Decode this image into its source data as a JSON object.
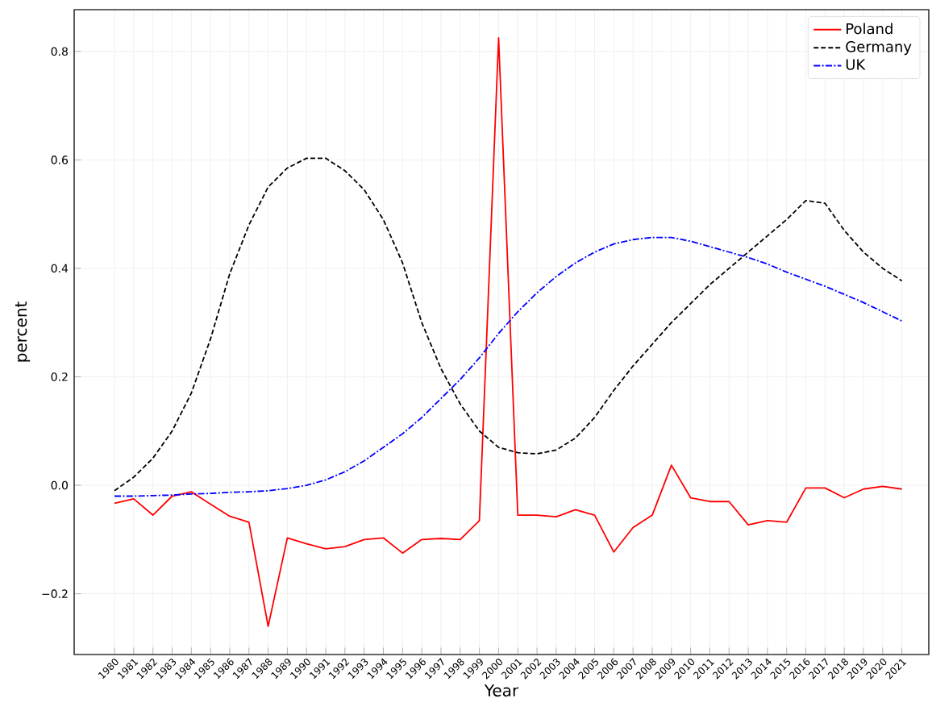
{
  "chart_data": {
    "type": "line",
    "xlabel": "Year",
    "ylabel": "percent",
    "x": [
      1980,
      1981,
      1982,
      1983,
      1984,
      1985,
      1986,
      1987,
      1988,
      1989,
      1990,
      1991,
      1992,
      1993,
      1994,
      1995,
      1996,
      1997,
      1998,
      1999,
      2000,
      2001,
      2002,
      2003,
      2004,
      2005,
      2006,
      2007,
      2008,
      2009,
      2010,
      2011,
      2012,
      2013,
      2014,
      2015,
      2016,
      2017,
      2018,
      2019,
      2020,
      2021
    ],
    "series": [
      {
        "name": "Poland",
        "color": "#ff0000",
        "line_style": "solid",
        "values": [
          -0.033,
          -0.025,
          -0.055,
          -0.02,
          -0.012,
          -0.035,
          -0.057,
          -0.068,
          -0.26,
          -0.097,
          -0.108,
          -0.117,
          -0.113,
          -0.1,
          -0.097,
          -0.125,
          -0.1,
          -0.098,
          -0.1,
          -0.065,
          0.825,
          -0.055,
          -0.055,
          -0.058,
          -0.045,
          -0.055,
          -0.123,
          -0.078,
          -0.055,
          0.037,
          -0.023,
          -0.03,
          -0.03,
          -0.073,
          -0.065,
          -0.068,
          -0.005,
          -0.005,
          -0.023,
          -0.007,
          -0.002,
          -0.007
        ]
      },
      {
        "name": "Germany",
        "color": "#000000",
        "line_style": "dashed",
        "values": [
          -0.01,
          0.015,
          0.05,
          0.1,
          0.17,
          0.27,
          0.39,
          0.48,
          0.55,
          0.585,
          0.603,
          0.603,
          0.58,
          0.545,
          0.49,
          0.41,
          0.3,
          0.215,
          0.15,
          0.1,
          0.07,
          0.06,
          0.058,
          0.065,
          0.087,
          0.125,
          0.175,
          0.22,
          0.26,
          0.3,
          0.335,
          0.37,
          0.4,
          0.43,
          0.46,
          0.49,
          0.525,
          0.52,
          0.47,
          0.43,
          0.4,
          0.377
        ]
      },
      {
        "name": "UK",
        "color": "#0000ff",
        "line_style": "dashdot",
        "values": [
          -0.02,
          -0.02,
          -0.019,
          -0.018,
          -0.016,
          -0.015,
          -0.013,
          -0.012,
          -0.01,
          -0.006,
          0,
          0.01,
          0.025,
          0.045,
          0.07,
          0.095,
          0.125,
          0.16,
          0.195,
          0.235,
          0.28,
          0.32,
          0.355,
          0.385,
          0.41,
          0.43,
          0.445,
          0.453,
          0.457,
          0.457,
          0.45,
          0.44,
          0.43,
          0.42,
          0.408,
          0.393,
          0.38,
          0.367,
          0.352,
          0.337,
          0.32,
          0.303
        ]
      }
    ],
    "xlim": [
      1977.9,
      2022.4
    ],
    "ylim": [
      -0.312,
      0.877
    ],
    "xticks": [
      1980,
      1981,
      1982,
      1983,
      1984,
      1985,
      1986,
      1987,
      1988,
      1989,
      1990,
      1991,
      1992,
      1993,
      1994,
      1995,
      1996,
      1997,
      1998,
      1999,
      2000,
      2001,
      2002,
      2003,
      2004,
      2005,
      2006,
      2007,
      2008,
      2009,
      2010,
      2011,
      2012,
      2013,
      2014,
      2015,
      2016,
      2017,
      2018,
      2019,
      2020,
      2021
    ],
    "yticks": [
      {
        "value": -0.2,
        "label": "−0.2"
      },
      {
        "value": 0,
        "label": "0.0"
      },
      {
        "value": 0.2,
        "label": "0.2"
      },
      {
        "value": 0.4,
        "label": "0.4"
      },
      {
        "value": 0.6,
        "label": "0.6"
      },
      {
        "value": 0.8,
        "label": "0.8"
      }
    ],
    "grid": true,
    "legend": "top right",
    "marker": "none"
  }
}
